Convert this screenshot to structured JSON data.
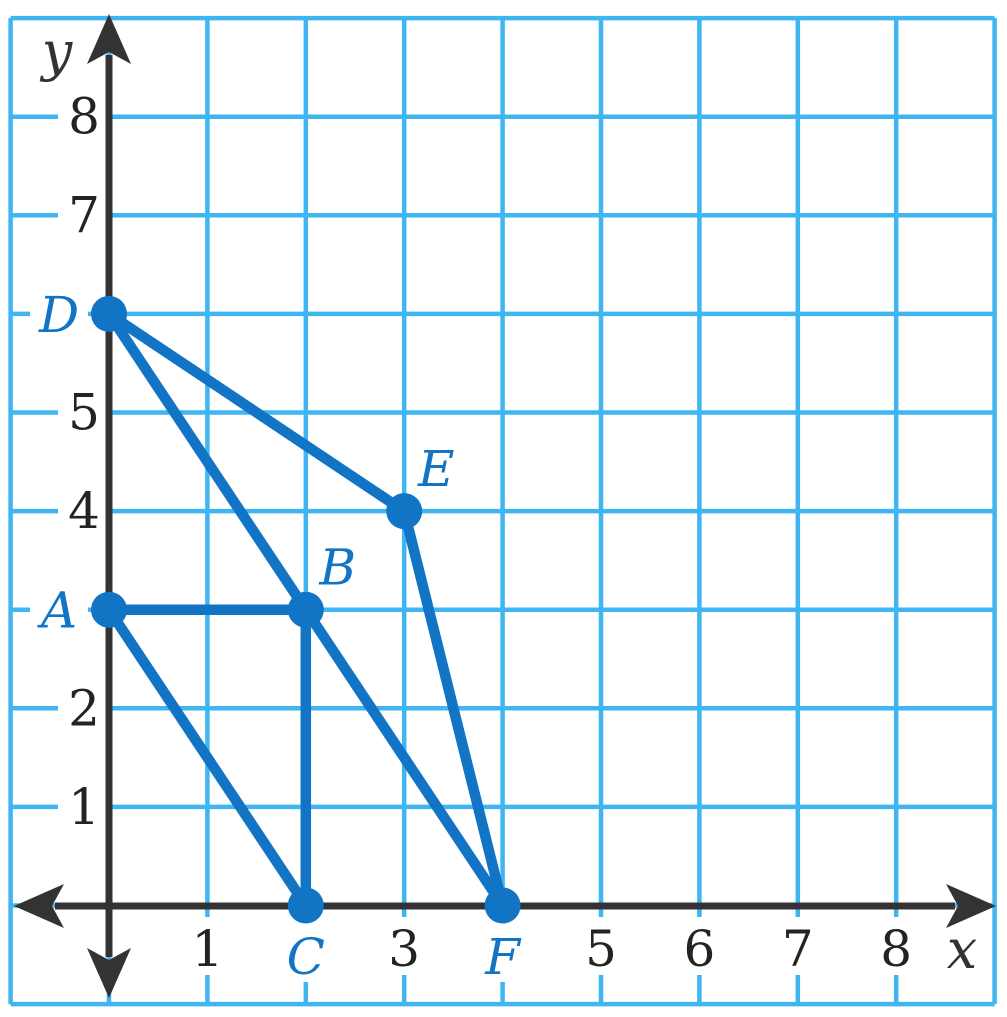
{
  "colors": {
    "grid_line": "#3FB5F2",
    "shape": "#1174C4",
    "axis": "#333333",
    "tick_label": "#232323",
    "background": "#FFFFFF"
  },
  "chart_data": {
    "type": "scatter",
    "title": "",
    "xlabel": "x",
    "ylabel": "y",
    "xlim": [
      -1,
      9
    ],
    "ylim": [
      -1,
      9
    ],
    "grid": true,
    "legend": false,
    "x_ticks": [
      {
        "value": 1,
        "label": "1"
      },
      {
        "value": 3,
        "label": "3"
      },
      {
        "value": 5,
        "label": "5"
      },
      {
        "value": 6,
        "label": "6"
      },
      {
        "value": 7,
        "label": "7"
      },
      {
        "value": 8,
        "label": "8"
      }
    ],
    "y_ticks": [
      {
        "value": 1,
        "label": "1"
      },
      {
        "value": 2,
        "label": "2"
      },
      {
        "value": 4,
        "label": "4"
      },
      {
        "value": 5,
        "label": "5"
      },
      {
        "value": 7,
        "label": "7"
      },
      {
        "value": 8,
        "label": "8"
      }
    ],
    "points": [
      {
        "name": "A",
        "x": 0,
        "y": 3,
        "label_placement": "left-of-axis"
      },
      {
        "name": "B",
        "x": 2,
        "y": 3,
        "label_placement": "above-right"
      },
      {
        "name": "C",
        "x": 2,
        "y": 0,
        "label_placement": "below-axis"
      },
      {
        "name": "D",
        "x": 0,
        "y": 6,
        "label_placement": "left-of-axis"
      },
      {
        "name": "E",
        "x": 3,
        "y": 4,
        "label_placement": "above-right"
      },
      {
        "name": "F",
        "x": 4,
        "y": 0,
        "label_placement": "below-axis"
      }
    ],
    "segments": [
      [
        "A",
        "B"
      ],
      [
        "B",
        "C"
      ],
      [
        "C",
        "A"
      ],
      [
        "D",
        "E"
      ],
      [
        "E",
        "F"
      ],
      [
        "F",
        "D"
      ]
    ]
  }
}
